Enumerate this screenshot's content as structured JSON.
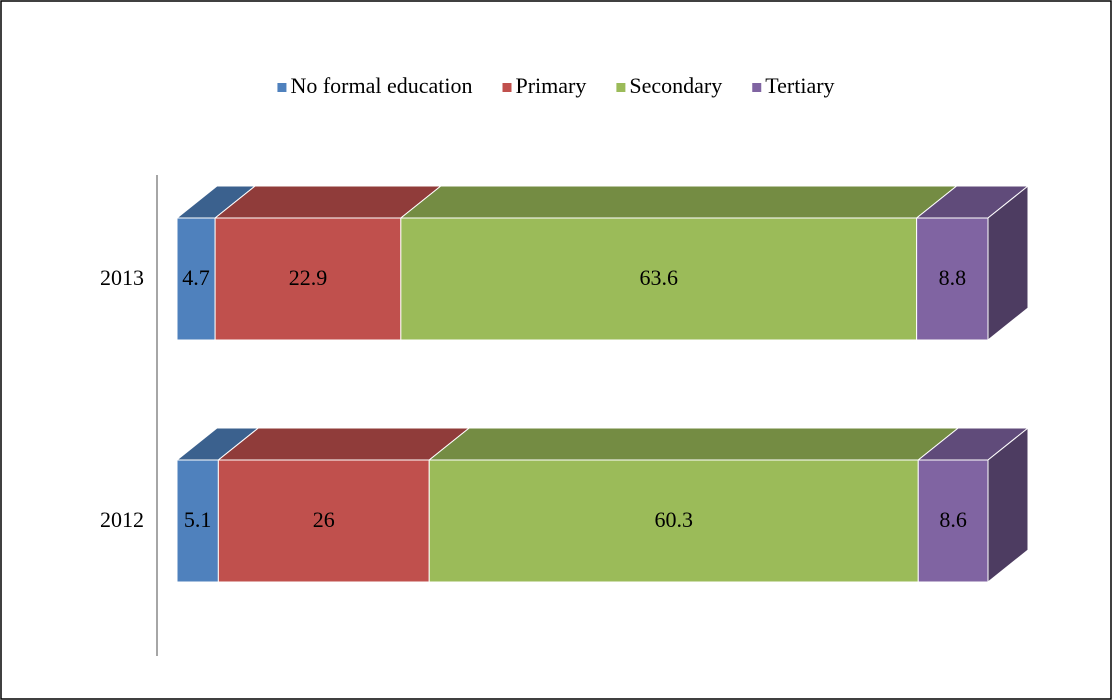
{
  "chart_data": {
    "type": "stacked-bar-3d",
    "categories": [
      "2013",
      "2012"
    ],
    "series": [
      {
        "name": "No formal education",
        "color": "#4f81bd",
        "values": [
          4.7,
          5.1
        ]
      },
      {
        "name": "Primary",
        "color": "#c0504d",
        "values": [
          22.9,
          26
        ]
      },
      {
        "name": "Secondary",
        "color": "#9bbb59",
        "values": [
          63.6,
          60.3
        ]
      },
      {
        "name": "Tertiary",
        "color": "#8064a2",
        "values": [
          8.8,
          8.6
        ]
      }
    ],
    "xlim": [
      0,
      100
    ],
    "legend": "top"
  }
}
